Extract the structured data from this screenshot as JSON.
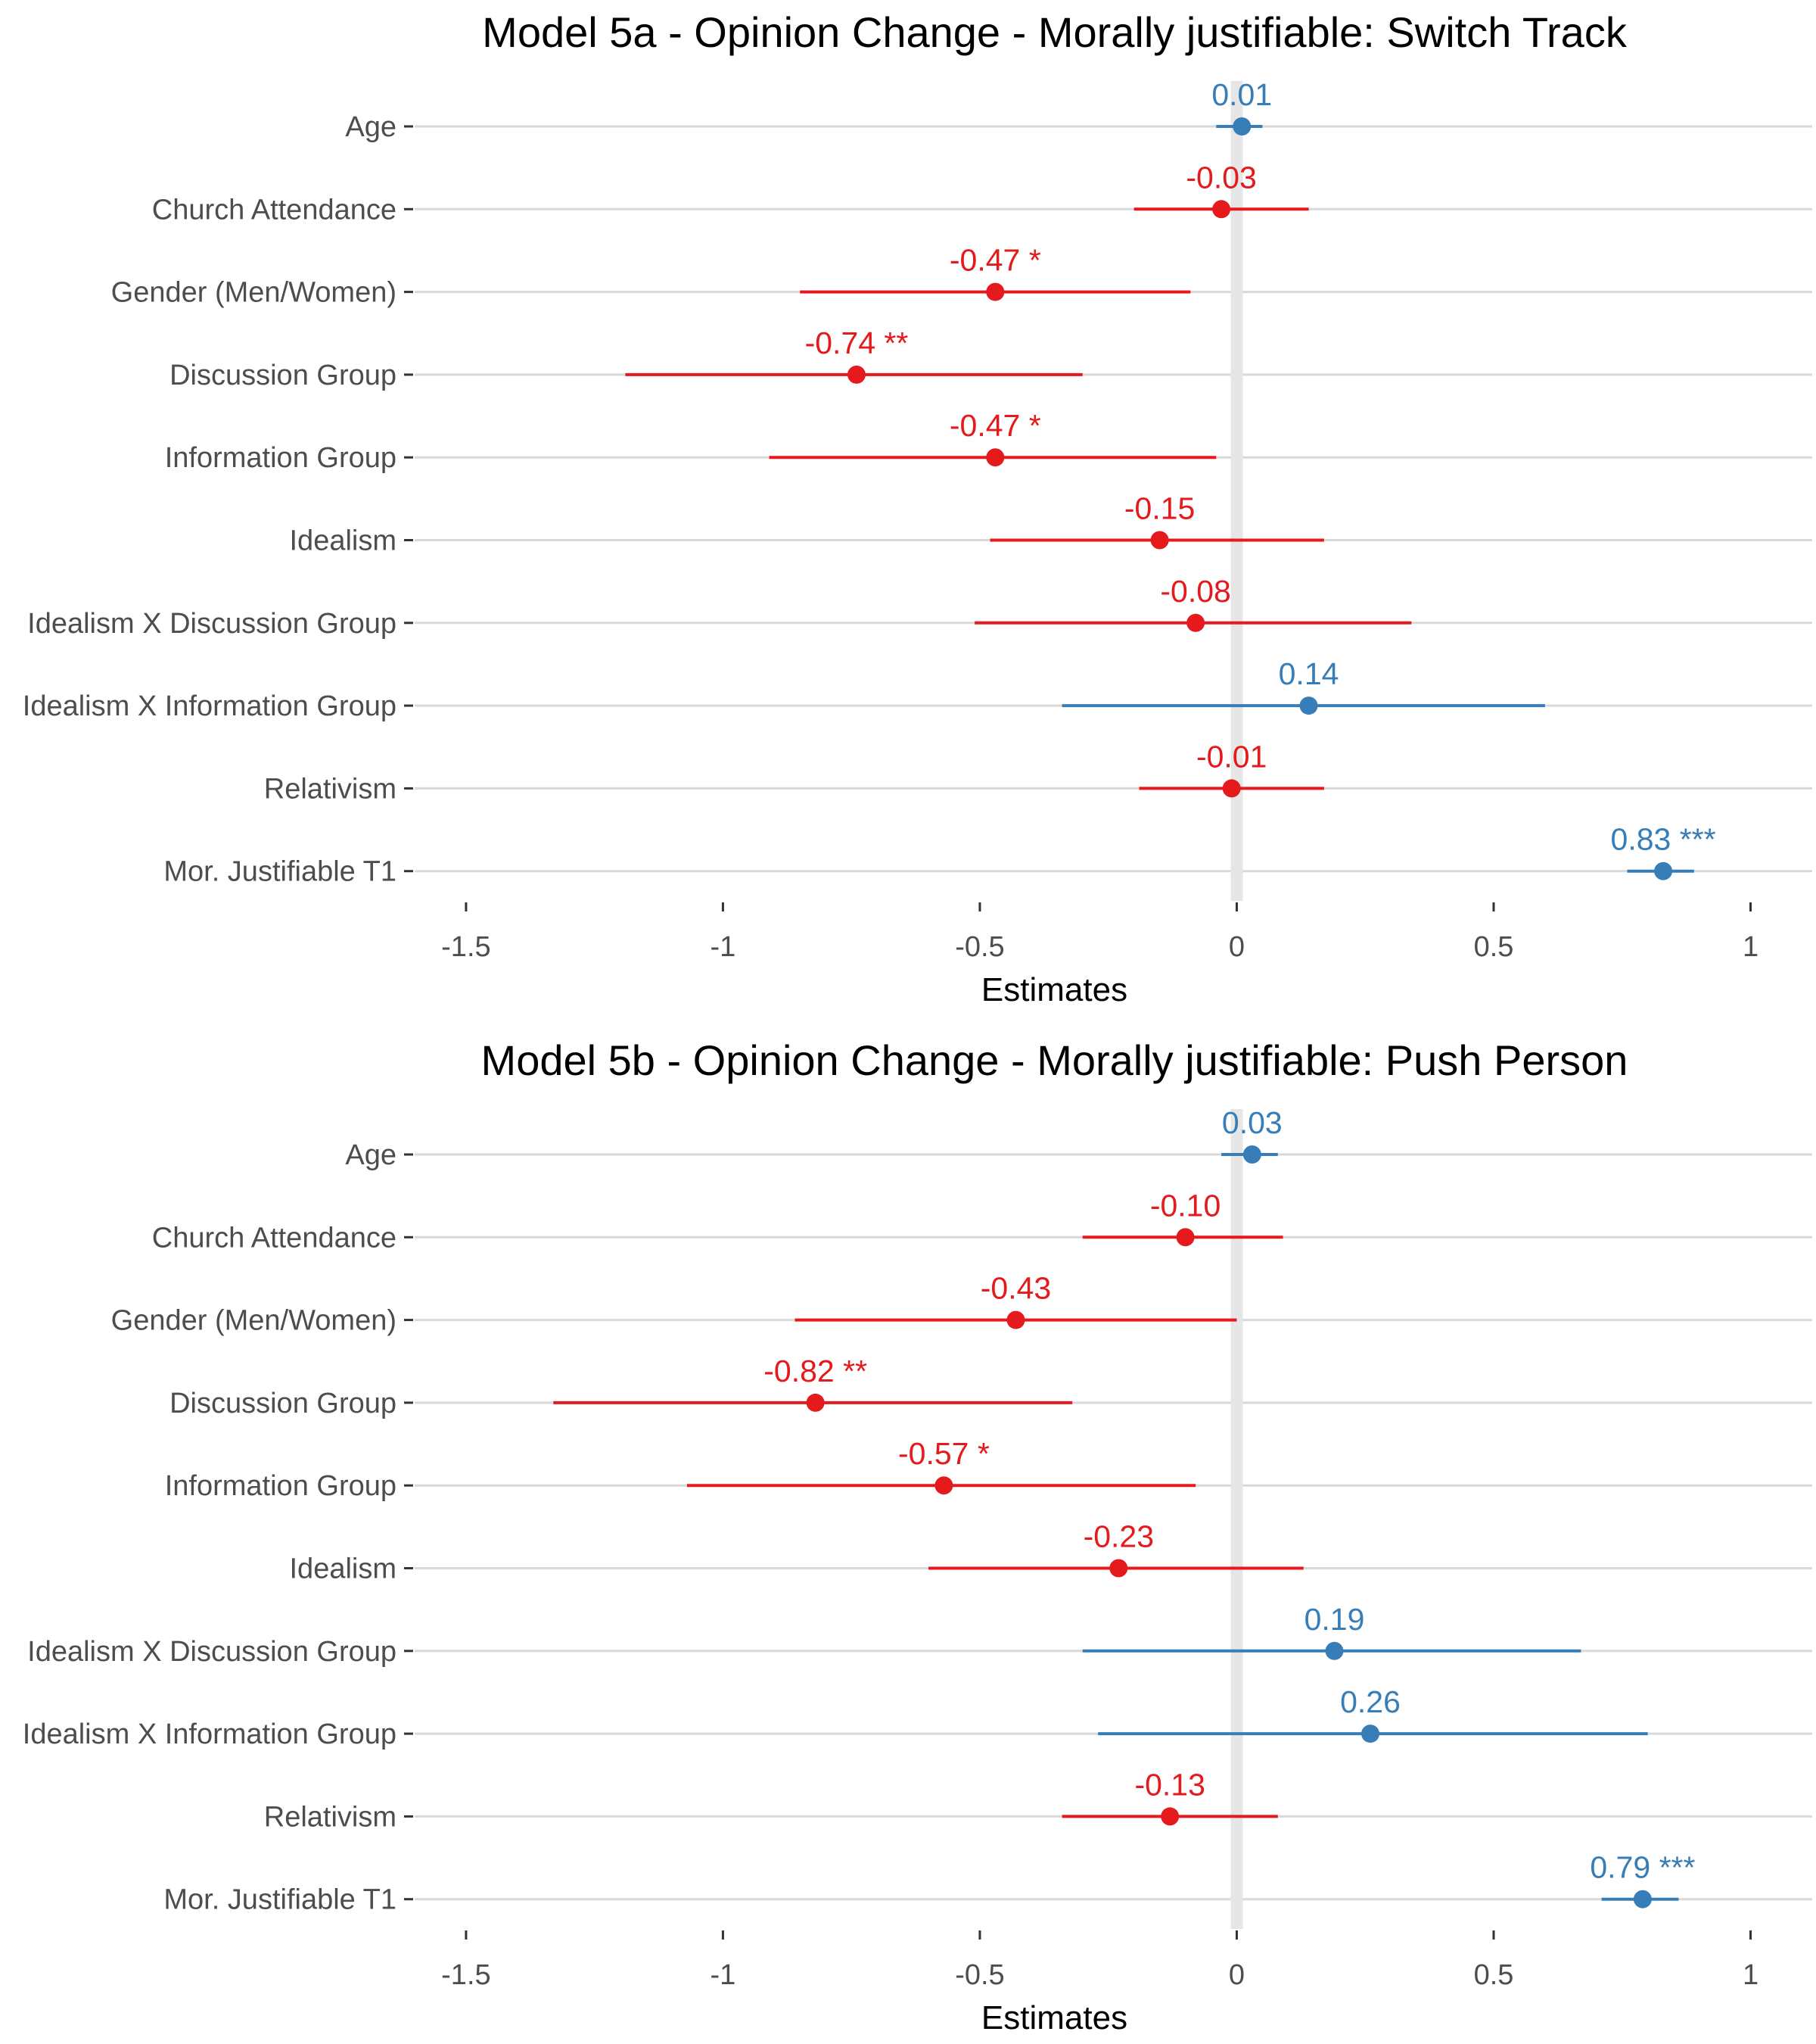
{
  "colors": {
    "negative": "#e41a1c",
    "positive": "#377eb8",
    "grid": "#d9d9d9",
    "zero_line": "#e6e6e6",
    "axis_text": "#4d4d4d"
  },
  "chart_data": [
    {
      "type": "forest",
      "title": "Model 5a - Opinion Change - Morally justifiable: Switch Track",
      "xlabel": "Estimates",
      "xlim": [
        -1.6,
        1.12
      ],
      "x_ticks": [
        -1.5,
        -1,
        -0.5,
        0,
        0.5,
        1
      ],
      "x_tick_labels": [
        "-1.5",
        "-1",
        "-0.5",
        "0",
        "0.5",
        "1"
      ],
      "terms": [
        {
          "label": "Age",
          "estimate": 0.01,
          "ci": [
            -0.04,
            0.05
          ],
          "value_label": "0.01"
        },
        {
          "label": "Church Attendance",
          "estimate": -0.03,
          "ci": [
            -0.2,
            0.14
          ],
          "value_label": "-0.03"
        },
        {
          "label": "Gender (Men/Women)",
          "estimate": -0.47,
          "ci": [
            -0.85,
            -0.09
          ],
          "value_label": "-0.47 *"
        },
        {
          "label": "Discussion Group",
          "estimate": -0.74,
          "ci": [
            -1.19,
            -0.3
          ],
          "value_label": "-0.74 **"
        },
        {
          "label": "Information Group",
          "estimate": -0.47,
          "ci": [
            -0.91,
            -0.04
          ],
          "value_label": "-0.47 *"
        },
        {
          "label": "Idealism",
          "estimate": -0.15,
          "ci": [
            -0.48,
            0.17
          ],
          "value_label": "-0.15"
        },
        {
          "label": "Idealism X Discussion Group",
          "estimate": -0.08,
          "ci": [
            -0.51,
            0.34
          ],
          "value_label": "-0.08"
        },
        {
          "label": "Idealism X Information Group",
          "estimate": 0.14,
          "ci": [
            -0.34,
            0.6
          ],
          "value_label": "0.14"
        },
        {
          "label": "Relativism",
          "estimate": -0.01,
          "ci": [
            -0.19,
            0.17
          ],
          "value_label": "-0.01"
        },
        {
          "label": "Mor. Justifiable T1",
          "estimate": 0.83,
          "ci": [
            0.76,
            0.89
          ],
          "value_label": "0.83 ***"
        }
      ]
    },
    {
      "type": "forest",
      "title": "Model 5b - Opinion Change - Morally justifiable: Push Person",
      "xlabel": "Estimates",
      "xlim": [
        -1.6,
        1.12
      ],
      "x_ticks": [
        -1.5,
        -1,
        -0.5,
        0,
        0.5,
        1
      ],
      "x_tick_labels": [
        "-1.5",
        "-1",
        "-0.5",
        "0",
        "0.5",
        "1"
      ],
      "terms": [
        {
          "label": "Age",
          "estimate": 0.03,
          "ci": [
            -0.03,
            0.08
          ],
          "value_label": "0.03"
        },
        {
          "label": "Church Attendance",
          "estimate": -0.1,
          "ci": [
            -0.3,
            0.09
          ],
          "value_label": "-0.10"
        },
        {
          "label": "Gender (Men/Women)",
          "estimate": -0.43,
          "ci": [
            -0.86,
            0.0
          ],
          "value_label": "-0.43"
        },
        {
          "label": "Discussion Group",
          "estimate": -0.82,
          "ci": [
            -1.33,
            -0.32
          ],
          "value_label": "-0.82 **"
        },
        {
          "label": "Information Group",
          "estimate": -0.57,
          "ci": [
            -1.07,
            -0.08
          ],
          "value_label": "-0.57 *"
        },
        {
          "label": "Idealism",
          "estimate": -0.23,
          "ci": [
            -0.6,
            0.13
          ],
          "value_label": "-0.23"
        },
        {
          "label": "Idealism X Discussion Group",
          "estimate": 0.19,
          "ci": [
            -0.3,
            0.67
          ],
          "value_label": "0.19"
        },
        {
          "label": "Idealism X Information Group",
          "estimate": 0.26,
          "ci": [
            -0.27,
            0.8
          ],
          "value_label": "0.26"
        },
        {
          "label": "Relativism",
          "estimate": -0.13,
          "ci": [
            -0.34,
            0.08
          ],
          "value_label": "-0.13"
        },
        {
          "label": "Mor. Justifiable T1",
          "estimate": 0.79,
          "ci": [
            0.71,
            0.86
          ],
          "value_label": "0.79 ***"
        }
      ]
    }
  ]
}
